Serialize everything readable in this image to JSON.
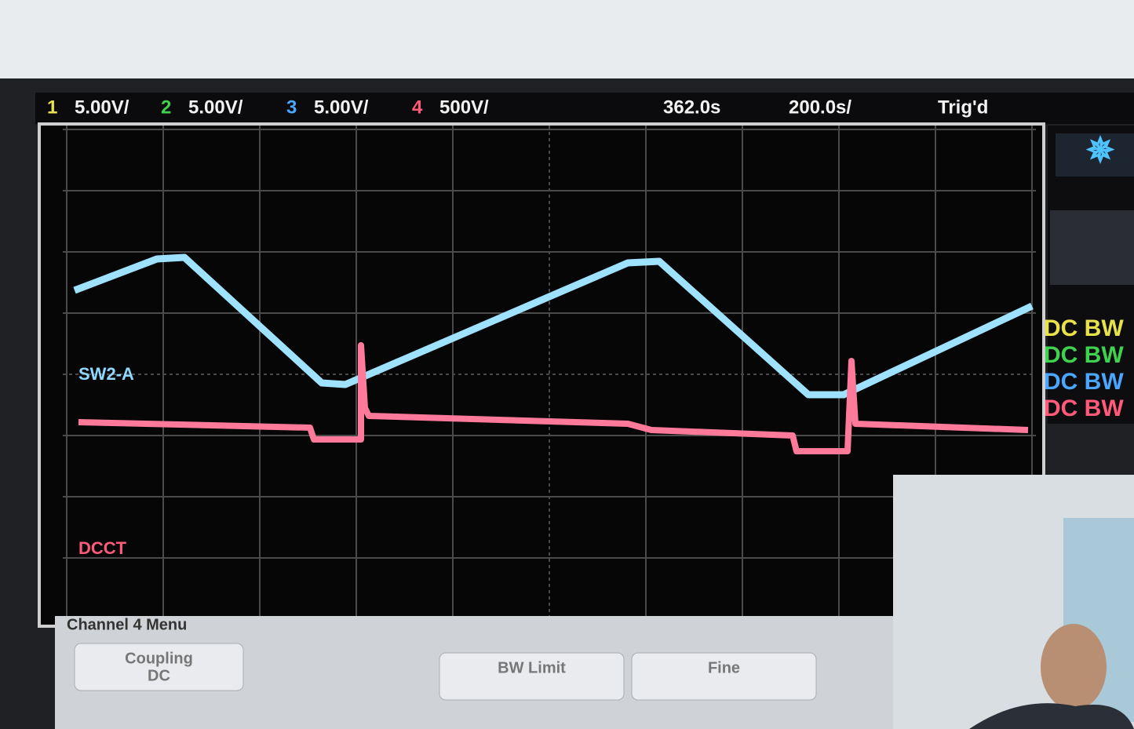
{
  "header": {
    "channels": [
      {
        "number": "1",
        "scale": "5.00V/",
        "color": "#e8e24a"
      },
      {
        "number": "2",
        "scale": "5.00V/",
        "color": "#3fd24f"
      },
      {
        "number": "3",
        "scale": "5.00V/",
        "color": "#4aa6ff"
      },
      {
        "number": "4",
        "scale": "500V/",
        "color": "#ff5a7a"
      }
    ],
    "delay": "362.0s",
    "timebase": "200.0s/",
    "trigger_status": "Trig'd"
  },
  "status_panel": {
    "coupling": [
      {
        "label": "DC BW",
        "color": "#e8e24a"
      },
      {
        "label": "DC BW",
        "color": "#3fd24f"
      },
      {
        "label": "DC BW",
        "color": "#4aa6ff"
      },
      {
        "label": "DC BW",
        "color": "#ff5a7a"
      }
    ]
  },
  "waveform_labels": [
    {
      "label": "SW2-A",
      "color": "#8fd8ff"
    },
    {
      "label": "DCCT",
      "color": "#ff5a7a"
    }
  ],
  "menu": {
    "title": "Channel 4 Menu",
    "buttons": [
      {
        "label": "Coupling",
        "value": "DC"
      },
      {
        "label": "BW Limit"
      },
      {
        "label": "Fine"
      }
    ]
  }
}
